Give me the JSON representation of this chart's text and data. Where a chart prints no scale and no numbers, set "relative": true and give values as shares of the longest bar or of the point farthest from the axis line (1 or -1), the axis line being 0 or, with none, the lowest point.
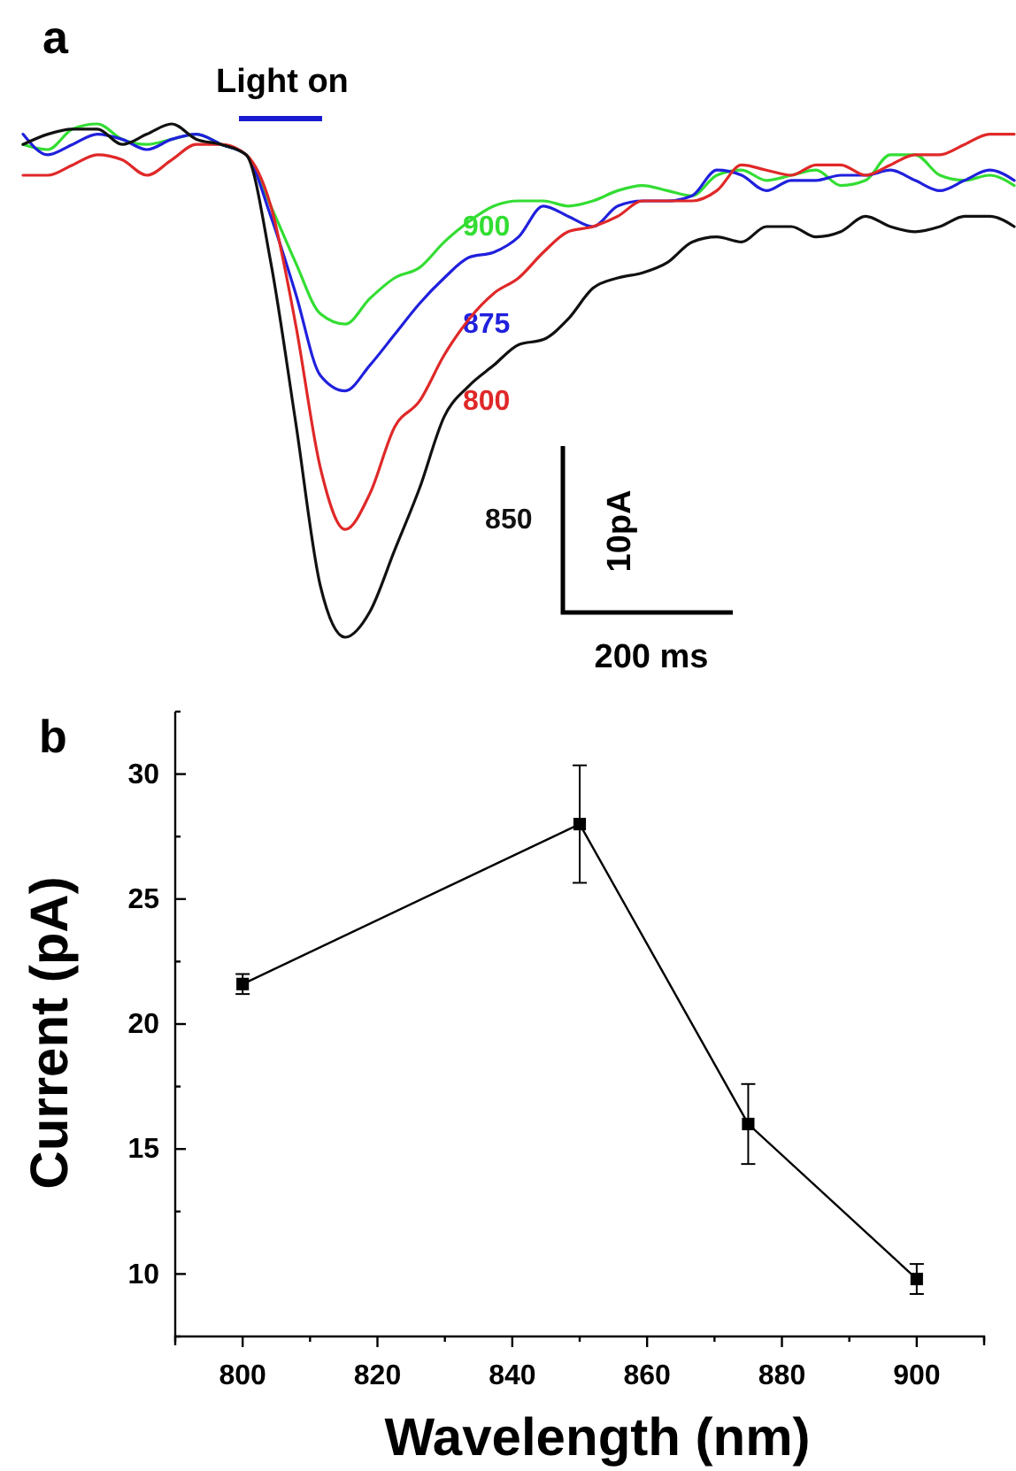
{
  "chart_data": [
    {
      "type": "line",
      "title": "a",
      "relative": true,
      "marker": "none",
      "line_style": "solid",
      "annotations": [
        "Light on",
        "10pA",
        "200 ms"
      ],
      "categories": [
        null,
        null,
        null,
        null,
        null,
        null,
        null,
        null,
        null,
        null,
        null,
        null,
        null,
        null,
        null,
        null,
        null,
        null,
        null,
        null,
        null,
        null,
        null,
        null,
        null,
        null,
        null,
        null,
        null,
        null,
        null,
        null,
        null,
        null,
        null,
        null,
        null,
        null,
        null,
        null,
        null
      ],
      "series": [
        {
          "name": "900",
          "color": "#33dd33",
          "values": [
            0.96,
            0.95,
            0.99,
            1,
            0.97,
            0.96,
            0.97,
            0.98,
            0.96,
            0.94,
            0.84,
            0.73,
            0.63,
            0.61,
            0.66,
            0.7,
            0.72,
            0.77,
            0.81,
            0.84,
            0.85,
            0.85,
            0.84,
            0.85,
            0.87,
            0.88,
            0.87,
            0.86,
            0.9,
            0.91,
            0.89,
            0.9,
            0.91,
            0.88,
            0.89,
            0.94,
            0.94,
            0.9,
            0.89,
            0.9,
            0.88
          ]
        },
        {
          "name": "875",
          "color": "#2020dd",
          "values": [
            0.98,
            0.94,
            0.96,
            0.98,
            0.97,
            0.95,
            0.97,
            0.98,
            0.96,
            0.94,
            0.82,
            0.67,
            0.51,
            0.48,
            0.53,
            0.59,
            0.65,
            0.7,
            0.74,
            0.75,
            0.78,
            0.84,
            0.82,
            0.8,
            0.84,
            0.85,
            0.85,
            0.86,
            0.91,
            0.9,
            0.87,
            0.89,
            0.89,
            0.9,
            0.9,
            0.91,
            0.89,
            0.87,
            0.89,
            0.91,
            0.89
          ]
        },
        {
          "name": "800",
          "color": "#e02828",
          "values": [
            0.9,
            0.9,
            0.92,
            0.94,
            0.93,
            0.9,
            0.93,
            0.96,
            0.96,
            0.94,
            0.84,
            0.61,
            0.33,
            0.21,
            0.28,
            0.41,
            0.46,
            0.55,
            0.62,
            0.67,
            0.7,
            0.75,
            0.79,
            0.8,
            0.82,
            0.85,
            0.85,
            0.85,
            0.87,
            0.92,
            0.91,
            0.9,
            0.92,
            0.92,
            0.9,
            0.92,
            0.94,
            0.94,
            0.96,
            0.98,
            0.98
          ]
        },
        {
          "name": "850",
          "color": "#111111",
          "values": [
            0.96,
            0.98,
            0.99,
            0.99,
            0.96,
            0.98,
            1,
            0.97,
            0.96,
            0.94,
            0.73,
            0.42,
            0.1,
            0,
            0.05,
            0.17,
            0.29,
            0.43,
            0.49,
            0.53,
            0.57,
            0.58,
            0.62,
            0.68,
            0.7,
            0.71,
            0.73,
            0.77,
            0.78,
            0.77,
            0.8,
            0.8,
            0.78,
            0.79,
            0.82,
            0.8,
            0.79,
            0.8,
            0.82,
            0.82,
            0.8
          ]
        }
      ]
    },
    {
      "type": "line",
      "title": "b",
      "xlabel": "Wavelength (nm)",
      "ylabel": "Current (pA)",
      "marker": "square",
      "line_style": "solid",
      "x": [
        800,
        850,
        875,
        900
      ],
      "series": [
        {
          "color": "#000000",
          "values": [
            21.6,
            28.0,
            16.0,
            9.8
          ],
          "errors": [
            0.4,
            2.35,
            1.6,
            0.6
          ]
        }
      ],
      "xlim": [
        790,
        910
      ],
      "xticks": [
        {
          "value": 790,
          "label": null
        },
        800,
        {
          "value": 810,
          "label": null
        },
        820,
        {
          "value": 830,
          "label": null
        },
        840,
        {
          "value": 850,
          "label": null
        },
        860,
        {
          "value": 870,
          "label": null
        },
        880,
        {
          "value": 890,
          "label": null
        },
        900,
        {
          "value": 910,
          "label": null
        }
      ],
      "ylim": [
        7.5,
        32.5
      ],
      "yticks": [
        {
          "value": 7.5,
          "label": null
        },
        10,
        {
          "value": 12.5,
          "label": null
        },
        15,
        {
          "value": 17.5,
          "label": null
        },
        20,
        {
          "value": 22.5,
          "label": null
        },
        25,
        {
          "value": 27.5,
          "label": null
        },
        30,
        {
          "value": 32.5,
          "label": null
        }
      ],
      "grid": false
    }
  ]
}
